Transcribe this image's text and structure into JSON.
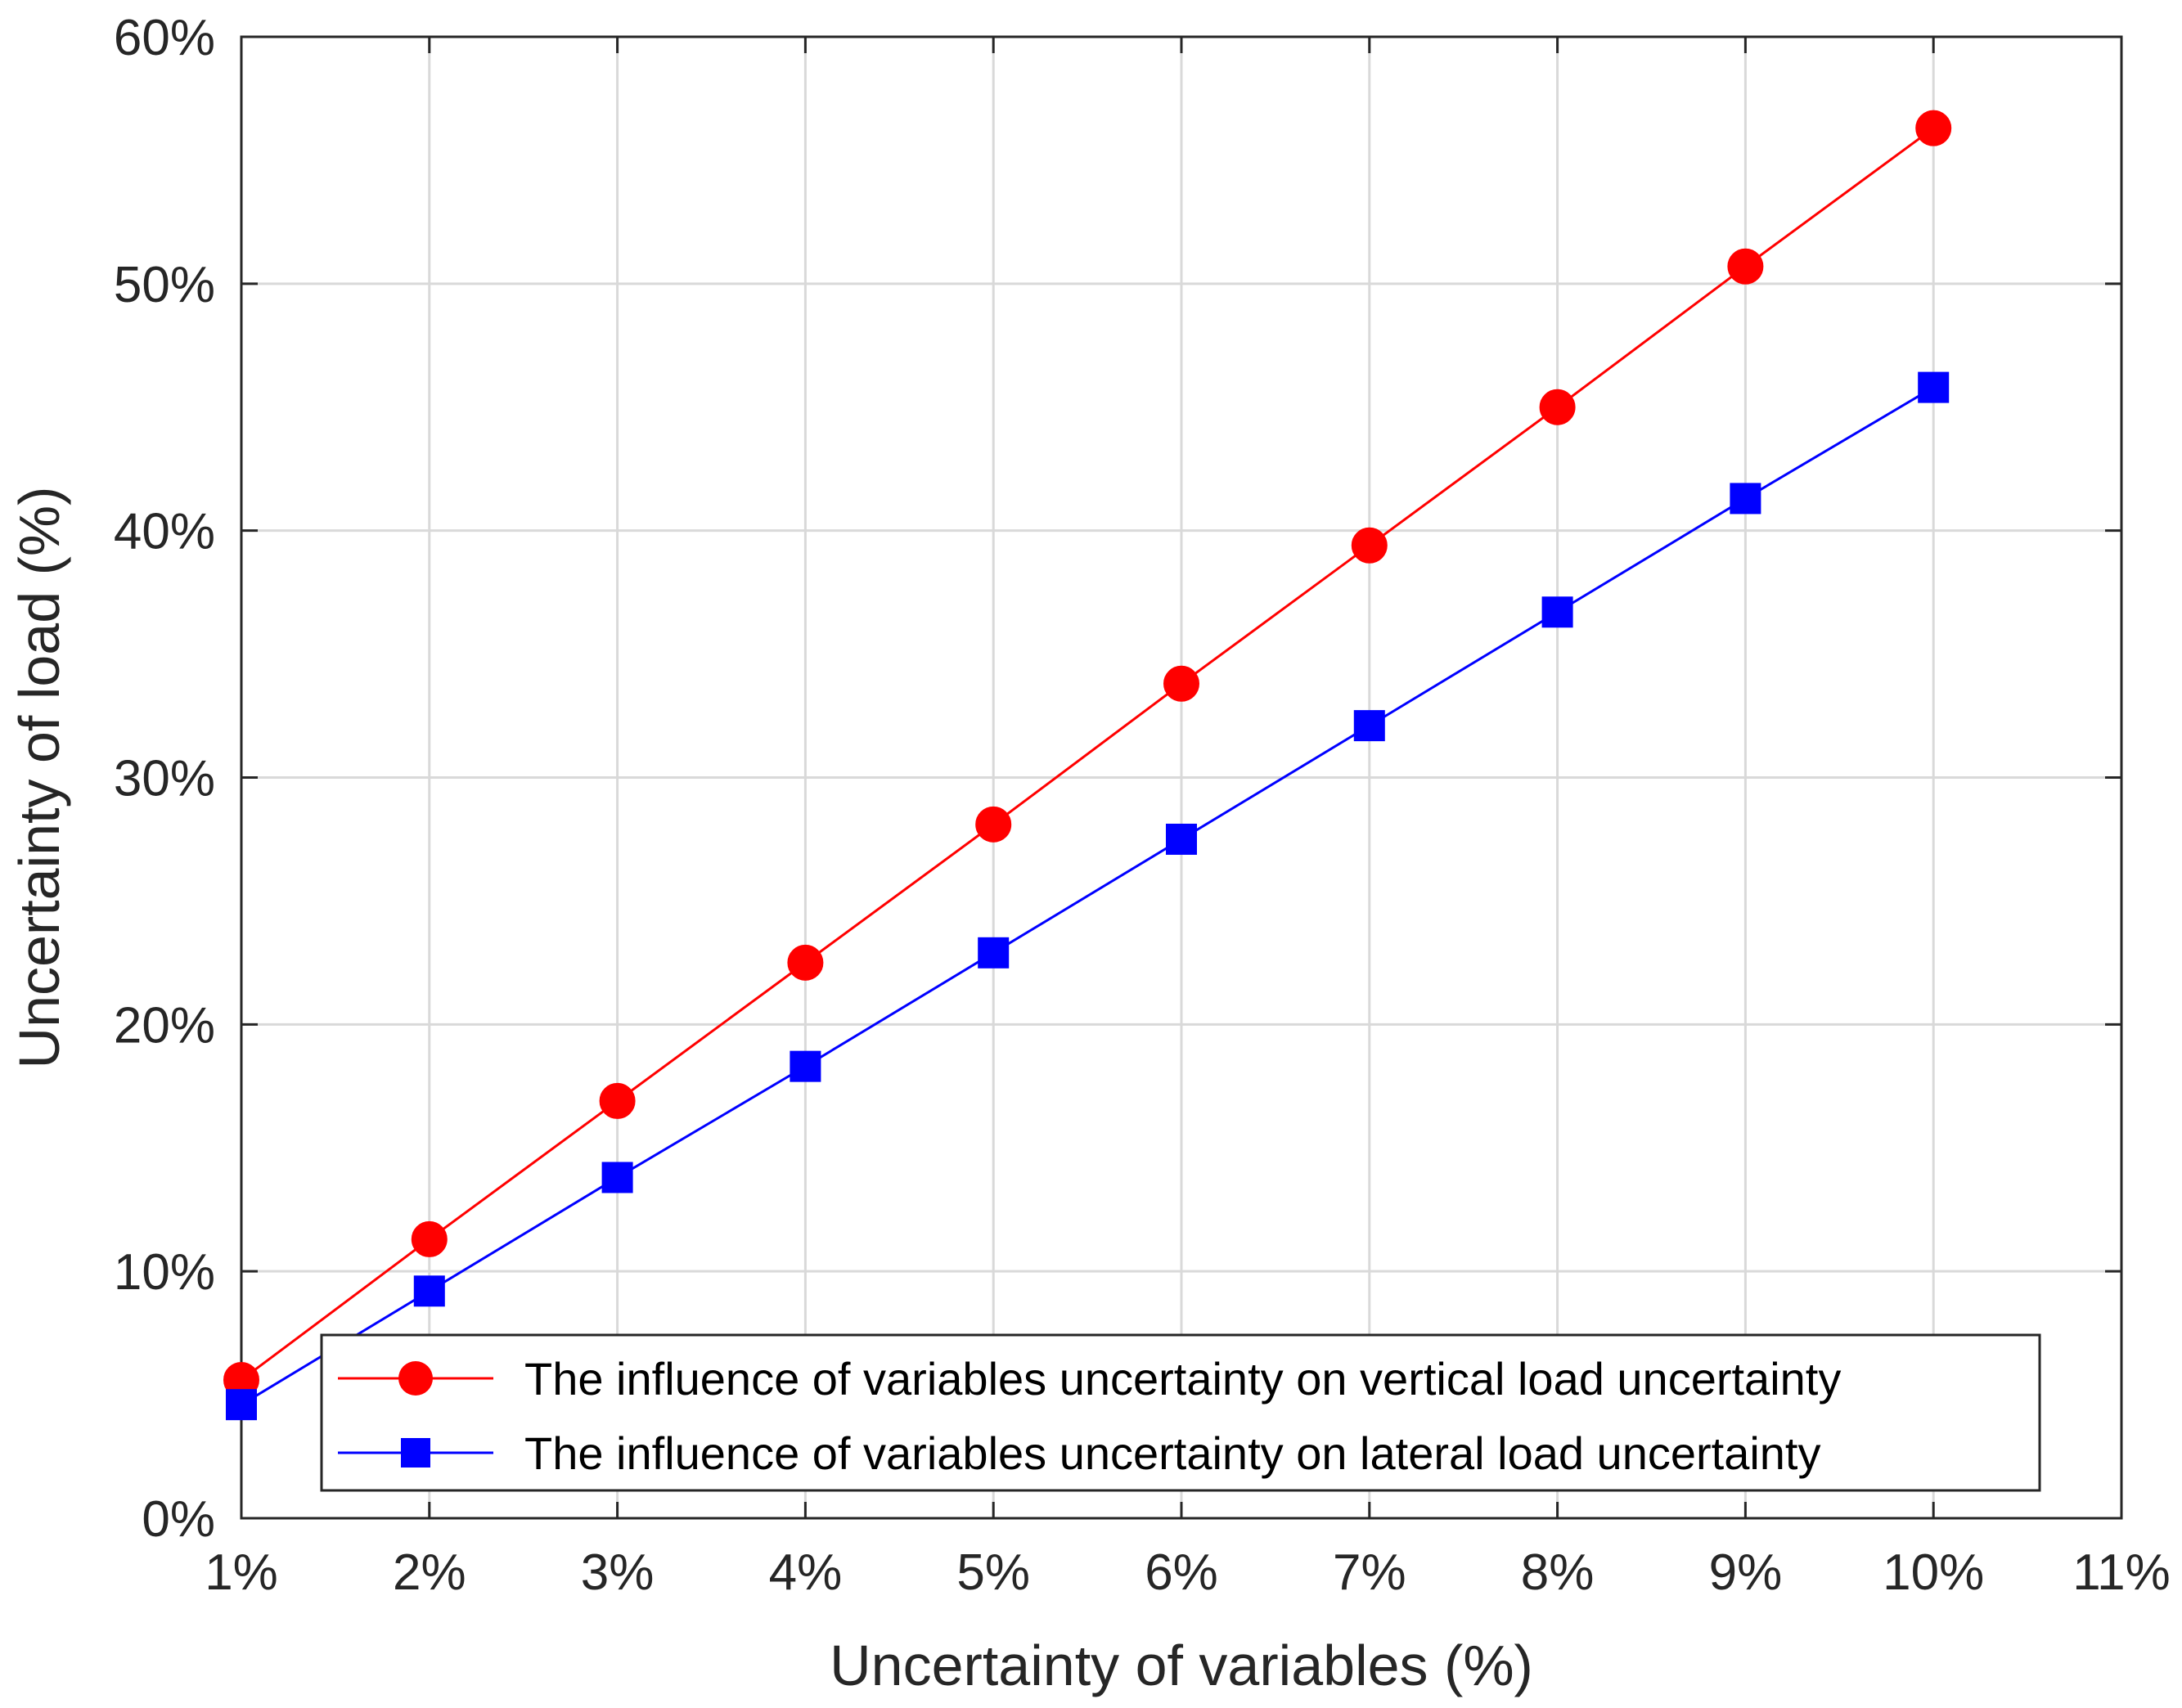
{
  "chart_data": {
    "type": "line",
    "title": "",
    "xlabel": "Uncertainty of variables (%)",
    "ylabel": "Uncertainty of load (%)",
    "xlim": [
      1,
      11
    ],
    "ylim": [
      0,
      60
    ],
    "x_ticks": [
      1,
      2,
      3,
      4,
      5,
      6,
      7,
      8,
      9,
      10,
      11
    ],
    "x_tick_labels": [
      "1%",
      "2%",
      "3%",
      "4%",
      "5%",
      "6%",
      "7%",
      "8%",
      "9%",
      "10%",
      "11%"
    ],
    "y_ticks": [
      0,
      10,
      20,
      30,
      40,
      50,
      60
    ],
    "y_tick_labels": [
      "0%",
      "10%",
      "20%",
      "30%",
      "40%",
      "50%",
      "60%"
    ],
    "grid": true,
    "legend_position": "bottom-right",
    "x": [
      1,
      2,
      3,
      4,
      5,
      6,
      7,
      8,
      9,
      10
    ],
    "series": [
      {
        "name": "The influence of variables uncertainty on vertical load uncertainty",
        "color": "#ff0000",
        "marker": "circle",
        "values": [
          5.6,
          11.3,
          16.9,
          22.5,
          28.1,
          33.8,
          39.4,
          45.0,
          50.7,
          56.3
        ]
      },
      {
        "name": "The influence of variables uncertainty on lateral load uncertainty",
        "color": "#0000ff",
        "marker": "square",
        "values": [
          4.6,
          9.2,
          13.8,
          18.3,
          22.9,
          27.5,
          32.1,
          36.7,
          41.3,
          45.8
        ]
      }
    ]
  }
}
